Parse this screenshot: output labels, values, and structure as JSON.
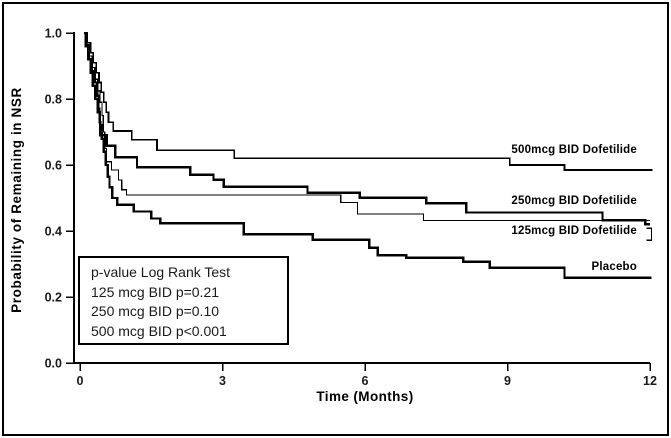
{
  "chart_data": {
    "type": "line",
    "subtype": "kaplan-meier-step",
    "xlabel": "Time (Months)",
    "ylabel": "Probability of Remaining in NSR",
    "xlim": [
      0,
      12
    ],
    "ylim": [
      0.0,
      1.0
    ],
    "x_ticks": [
      0,
      3,
      6,
      9,
      12
    ],
    "y_ticks": [
      "0.0",
      "0.2",
      "0.4",
      "0.6",
      "0.8",
      "1.0"
    ],
    "grid": false,
    "line_color": "#000000",
    "pvalue_box": {
      "title": "p-value Log Rank Test",
      "lines": [
        "125 mcg BID p=0.21",
        "250 mcg BID p=0.10",
        "500 mcg BID p<0.001"
      ]
    },
    "series": [
      {
        "label": "500mcg BID Dofetilide",
        "line_weight": "medium",
        "end_month": 12.05,
        "points": [
          [
            0.08,
            1.0
          ],
          [
            0.15,
            0.97
          ],
          [
            0.22,
            0.94
          ],
          [
            0.28,
            0.91
          ],
          [
            0.34,
            0.88
          ],
          [
            0.4,
            0.85
          ],
          [
            0.45,
            0.82
          ],
          [
            0.5,
            0.79
          ],
          [
            0.55,
            0.76
          ],
          [
            0.6,
            0.73
          ],
          [
            0.7,
            0.703
          ],
          [
            1.09,
            0.676
          ],
          [
            1.62,
            0.645
          ],
          [
            3.25,
            0.62
          ],
          [
            9.05,
            0.6
          ],
          [
            10.2,
            0.585
          ]
        ]
      },
      {
        "label": "250mcg BID Dofetilide",
        "line_weight": "thick",
        "end_month": 12.0,
        "points": [
          [
            0.08,
            1.0
          ],
          [
            0.13,
            0.96
          ],
          [
            0.19,
            0.92
          ],
          [
            0.25,
            0.885
          ],
          [
            0.31,
            0.85
          ],
          [
            0.36,
            0.81
          ],
          [
            0.39,
            0.77
          ],
          [
            0.41,
            0.73
          ],
          [
            0.43,
            0.69
          ],
          [
            0.56,
            0.658
          ],
          [
            0.74,
            0.623
          ],
          [
            1.2,
            0.593
          ],
          [
            2.32,
            0.57
          ],
          [
            2.81,
            0.555
          ],
          [
            3.03,
            0.534
          ],
          [
            4.79,
            0.516
          ],
          [
            5.89,
            0.501
          ],
          [
            7.29,
            0.484
          ],
          [
            8.13,
            0.456
          ],
          [
            11.0,
            0.433
          ],
          [
            11.9,
            0.42
          ]
        ]
      },
      {
        "label": "125mcg BID Dofetilide",
        "line_weight": "thin",
        "end_month": 12.0,
        "end_bracket": {
          "month": 12.03,
          "prob_top": 0.408,
          "prob_bottom": 0.372
        },
        "points": [
          [
            0.08,
            1.0
          ],
          [
            0.13,
            0.965
          ],
          [
            0.19,
            0.93
          ],
          [
            0.25,
            0.895
          ],
          [
            0.31,
            0.86
          ],
          [
            0.37,
            0.825
          ],
          [
            0.42,
            0.79
          ],
          [
            0.46,
            0.75
          ],
          [
            0.49,
            0.7
          ],
          [
            0.52,
            0.65
          ],
          [
            0.56,
            0.61
          ],
          [
            0.66,
            0.585
          ],
          [
            0.81,
            0.555
          ],
          [
            0.88,
            0.525
          ],
          [
            0.98,
            0.509
          ],
          [
            5.49,
            0.486
          ],
          [
            5.84,
            0.452
          ],
          [
            7.23,
            0.432
          ]
        ]
      },
      {
        "label": "Placebo",
        "line_weight": "thick",
        "end_month": 12.03,
        "points": [
          [
            0.08,
            1.0
          ],
          [
            0.12,
            0.96
          ],
          [
            0.17,
            0.92
          ],
          [
            0.22,
            0.88
          ],
          [
            0.27,
            0.84
          ],
          [
            0.32,
            0.8
          ],
          [
            0.37,
            0.76
          ],
          [
            0.42,
            0.72
          ],
          [
            0.46,
            0.68
          ],
          [
            0.5,
            0.64
          ],
          [
            0.54,
            0.6
          ],
          [
            0.58,
            0.565
          ],
          [
            0.62,
            0.533
          ],
          [
            0.68,
            0.5
          ],
          [
            0.78,
            0.48
          ],
          [
            1.13,
            0.459
          ],
          [
            1.5,
            0.438
          ],
          [
            1.69,
            0.423
          ],
          [
            3.45,
            0.39
          ],
          [
            4.9,
            0.373
          ],
          [
            6.09,
            0.349
          ],
          [
            6.27,
            0.327
          ],
          [
            6.87,
            0.319
          ],
          [
            8.07,
            0.307
          ],
          [
            8.63,
            0.289
          ],
          [
            10.2,
            0.258
          ]
        ]
      }
    ]
  }
}
